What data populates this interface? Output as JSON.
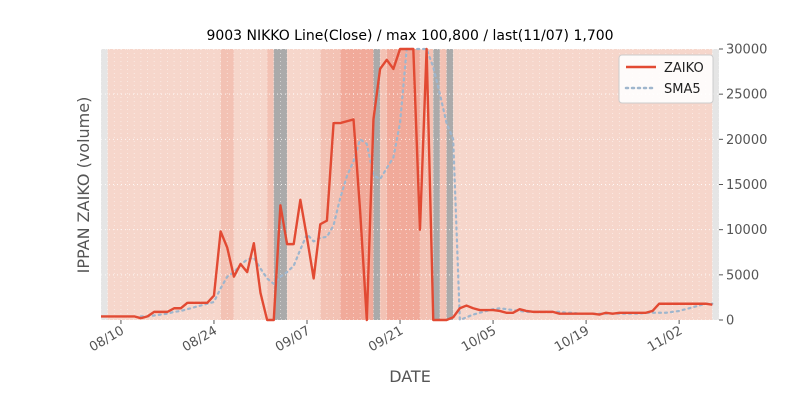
{
  "chart_data": {
    "type": "line",
    "title": "9003 NIKKO Line(Close) / max 100,800 / last(11/07) 1,700",
    "xlabel": "DATE",
    "ylabel": "IPPAN ZAIKO (volume)",
    "ylim": [
      0,
      30000
    ],
    "y_ticks": [
      0,
      5000,
      10000,
      15000,
      20000,
      25000,
      30000
    ],
    "y_tick_labels": [
      "0",
      "5000",
      "10000",
      "15000",
      "20000",
      "25000",
      "30000"
    ],
    "x_range": [
      "2020-08-07",
      "2020-11-08"
    ],
    "x_ticks": [
      "2020-08-10",
      "2020-08-24",
      "2020-09-07",
      "2020-09-21",
      "2020-10-05",
      "2020-10-19",
      "2020-11-02"
    ],
    "x_tick_labels": [
      "08/10",
      "08/24",
      "09/07",
      "09/21",
      "10/05",
      "10/19",
      "11/02"
    ],
    "grid": true,
    "legend_position": "top-right",
    "colors": {
      "zaiko": "#e24a33",
      "sma5": "#9fb6cd",
      "band_light": "#f6d6cb",
      "band_mid": "#f3c2b4",
      "band_dark": "#f1aa9a",
      "band_gray": "#aaaaaa",
      "edge_gray": "#e5e5e5"
    },
    "bands": [
      {
        "start": "2020-08-07",
        "end": "2020-08-08",
        "level": "gray_light"
      },
      {
        "start": "2020-08-08",
        "end": "2020-08-25",
        "level": "light"
      },
      {
        "start": "2020-08-25",
        "end": "2020-08-27",
        "level": "mid"
      },
      {
        "start": "2020-08-27",
        "end": "2020-09-01",
        "level": "light"
      },
      {
        "start": "2020-09-01",
        "end": "2020-09-02",
        "level": "mid"
      },
      {
        "start": "2020-09-02",
        "end": "2020-09-04",
        "level": "gray"
      },
      {
        "start": "2020-09-04",
        "end": "2020-09-09",
        "level": "light"
      },
      {
        "start": "2020-09-09",
        "end": "2020-09-12",
        "level": "mid"
      },
      {
        "start": "2020-09-12",
        "end": "2020-09-17",
        "level": "dark"
      },
      {
        "start": "2020-09-17",
        "end": "2020-09-18",
        "level": "gray"
      },
      {
        "start": "2020-09-18",
        "end": "2020-09-19",
        "level": "mid"
      },
      {
        "start": "2020-09-19",
        "end": "2020-09-24",
        "level": "dark"
      },
      {
        "start": "2020-09-24",
        "end": "2020-09-26",
        "level": "mid"
      },
      {
        "start": "2020-09-26",
        "end": "2020-09-27",
        "level": "gray"
      },
      {
        "start": "2020-09-27",
        "end": "2020-09-28",
        "level": "mid"
      },
      {
        "start": "2020-09-28",
        "end": "2020-09-29",
        "level": "gray"
      },
      {
        "start": "2020-09-29",
        "end": "2020-11-07",
        "level": "light"
      },
      {
        "start": "2020-11-07",
        "end": "2020-11-08",
        "level": "gray_light"
      }
    ],
    "series": [
      {
        "name": "ZAIKO",
        "style": "solid",
        "x": [
          "2020-08-07",
          "2020-08-08",
          "2020-08-09",
          "2020-08-10",
          "2020-08-11",
          "2020-08-12",
          "2020-08-13",
          "2020-08-14",
          "2020-08-15",
          "2020-08-16",
          "2020-08-17",
          "2020-08-18",
          "2020-08-19",
          "2020-08-20",
          "2020-08-21",
          "2020-08-22",
          "2020-08-23",
          "2020-08-24",
          "2020-08-25",
          "2020-08-26",
          "2020-08-27",
          "2020-08-28",
          "2020-08-29",
          "2020-08-30",
          "2020-08-31",
          "2020-09-01",
          "2020-09-02",
          "2020-09-03",
          "2020-09-04",
          "2020-09-05",
          "2020-09-06",
          "2020-09-07",
          "2020-09-08",
          "2020-09-09",
          "2020-09-10",
          "2020-09-11",
          "2020-09-12",
          "2020-09-13",
          "2020-09-14",
          "2020-09-15",
          "2020-09-16",
          "2020-09-17",
          "2020-09-18",
          "2020-09-19",
          "2020-09-20",
          "2020-09-21",
          "2020-09-22",
          "2020-09-23",
          "2020-09-24",
          "2020-09-25",
          "2020-09-26",
          "2020-09-27",
          "2020-09-28",
          "2020-09-29",
          "2020-09-30",
          "2020-10-01",
          "2020-10-02",
          "2020-10-03",
          "2020-10-04",
          "2020-10-05",
          "2020-10-06",
          "2020-10-07",
          "2020-10-08",
          "2020-10-09",
          "2020-10-10",
          "2020-10-11",
          "2020-10-12",
          "2020-10-13",
          "2020-10-14",
          "2020-10-15",
          "2020-10-16",
          "2020-10-17",
          "2020-10-18",
          "2020-10-19",
          "2020-10-20",
          "2020-10-21",
          "2020-10-22",
          "2020-10-23",
          "2020-10-24",
          "2020-10-25",
          "2020-10-26",
          "2020-10-27",
          "2020-10-28",
          "2020-10-29",
          "2020-10-30",
          "2020-10-31",
          "2020-11-01",
          "2020-11-02",
          "2020-11-03",
          "2020-11-04",
          "2020-11-05",
          "2020-11-06",
          "2020-11-07"
        ],
        "values": [
          400,
          400,
          400,
          400,
          400,
          400,
          200,
          400,
          900,
          900,
          900,
          1300,
          1300,
          1900,
          1900,
          1900,
          1900,
          2700,
          9800,
          8000,
          4800,
          6200,
          5300,
          8500,
          3000,
          0,
          0,
          12700,
          8400,
          8400,
          13300,
          9100,
          4600,
          10600,
          11000,
          21800,
          21800,
          22000,
          22200,
          12000,
          0,
          22200,
          27800,
          28800,
          27800,
          30000,
          30000,
          30000,
          10000,
          30000,
          0,
          0,
          0,
          300,
          1300,
          1600,
          1300,
          1100,
          1100,
          1100,
          1000,
          800,
          800,
          1200,
          1000,
          900,
          900,
          900,
          900,
          700,
          700,
          700,
          700,
          700,
          700,
          600,
          800,
          700,
          800,
          800,
          800,
          800,
          800,
          1000,
          1800,
          1800,
          1800,
          1800,
          1800,
          1800,
          1800,
          1800,
          1700
        ]
      },
      {
        "name": "SMA5",
        "style": "dotted",
        "x": [
          "2020-08-13",
          "2020-08-14",
          "2020-08-15",
          "2020-08-16",
          "2020-08-17",
          "2020-08-18",
          "2020-08-19",
          "2020-08-20",
          "2020-08-21",
          "2020-08-22",
          "2020-08-23",
          "2020-08-24",
          "2020-08-25",
          "2020-08-26",
          "2020-08-27",
          "2020-08-28",
          "2020-08-29",
          "2020-08-30",
          "2020-08-31",
          "2020-09-01",
          "2020-09-02",
          "2020-09-03",
          "2020-09-04",
          "2020-09-05",
          "2020-09-06",
          "2020-09-07",
          "2020-09-08",
          "2020-09-09",
          "2020-09-10",
          "2020-09-11",
          "2020-09-12",
          "2020-09-13",
          "2020-09-14",
          "2020-09-15",
          "2020-09-16",
          "2020-09-17",
          "2020-09-18",
          "2020-09-19",
          "2020-09-20",
          "2020-09-21",
          "2020-09-22",
          "2020-09-23",
          "2020-09-24",
          "2020-09-25",
          "2020-09-26",
          "2020-09-27",
          "2020-09-28",
          "2020-09-29",
          "2020-09-30",
          "2020-10-01",
          "2020-10-02",
          "2020-10-03",
          "2020-10-04",
          "2020-10-05",
          "2020-10-06",
          "2020-10-07",
          "2020-10-08",
          "2020-10-09",
          "2020-10-10",
          "2020-10-11",
          "2020-10-12",
          "2020-10-13",
          "2020-10-14",
          "2020-10-15",
          "2020-10-16",
          "2020-10-17",
          "2020-10-18",
          "2020-10-19",
          "2020-10-20",
          "2020-10-21",
          "2020-10-22",
          "2020-10-23",
          "2020-10-24",
          "2020-10-25",
          "2020-10-26",
          "2020-10-27",
          "2020-10-28",
          "2020-10-29",
          "2020-10-30",
          "2020-10-31",
          "2020-11-01",
          "2020-11-02",
          "2020-11-03",
          "2020-11-04",
          "2020-11-05",
          "2020-11-06",
          "2020-11-07"
        ],
        "values": [
          400,
          400,
          500,
          600,
          700,
          900,
          1000,
          1200,
          1400,
          1600,
          1800,
          2000,
          3500,
          4800,
          5300,
          6100,
          6700,
          6900,
          5700,
          4600,
          4000,
          4800,
          5300,
          6000,
          7800,
          9500,
          8700,
          9100,
          9200,
          10500,
          13500,
          15900,
          17600,
          20000,
          19500,
          16000,
          15600,
          16800,
          18000,
          21800,
          30000,
          30000,
          30000,
          30000,
          28000,
          25000,
          21800,
          20000,
          0,
          300,
          600,
          800,
          1000,
          1200,
          1300,
          1200,
          1100,
          1000,
          900,
          900,
          900,
          900,
          900,
          900,
          800,
          800,
          700,
          700,
          700,
          700,
          700,
          700,
          700,
          700,
          700,
          700,
          800,
          800,
          800,
          800,
          900,
          1000,
          1200,
          1400,
          1600,
          1800,
          1800
        ]
      }
    ]
  }
}
